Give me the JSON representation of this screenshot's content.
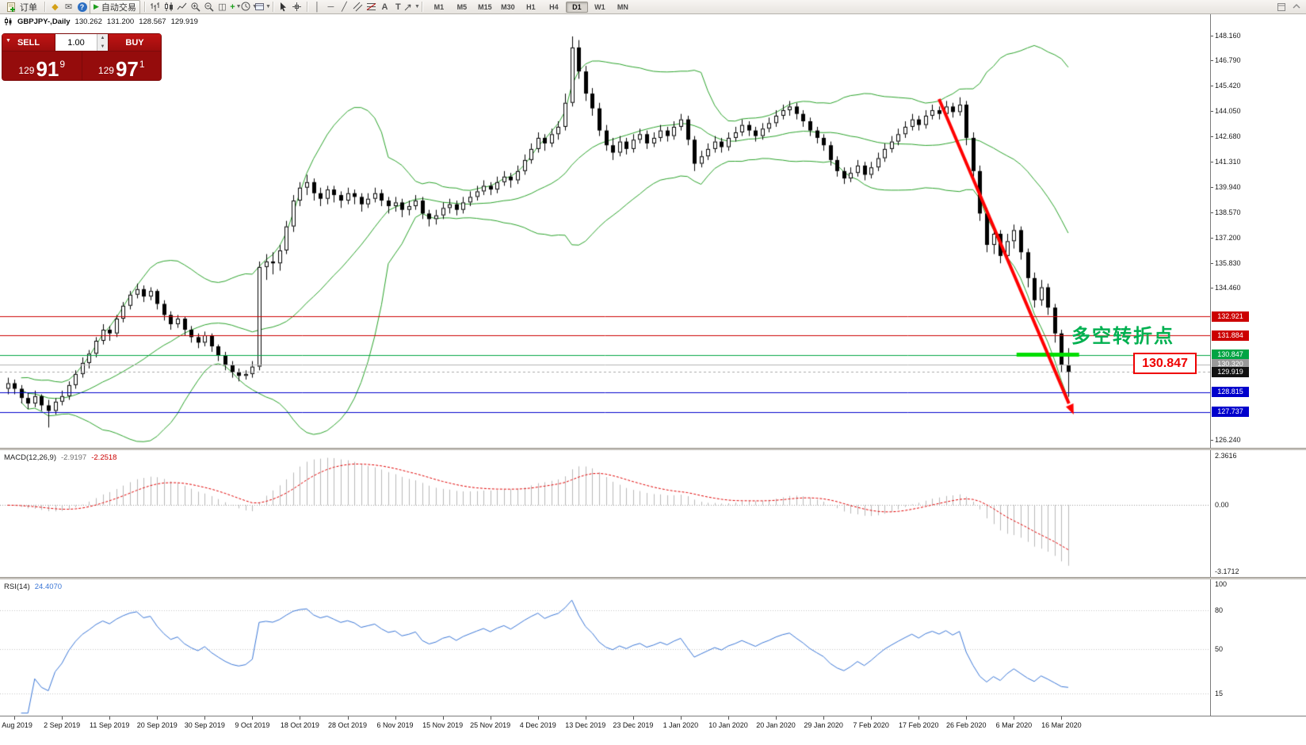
{
  "toolbar": {
    "order_label": "订单",
    "autotrade_label": "自动交易",
    "timeframes": [
      "M1",
      "M5",
      "M15",
      "M30",
      "H1",
      "H4",
      "D1",
      "W1",
      "MN"
    ],
    "active_timeframe": "D1"
  },
  "quote": {
    "symbol": "GBPJPY-,Daily",
    "open": "130.262",
    "high": "131.200",
    "low": "128.567",
    "close": "129.919"
  },
  "trade_panel": {
    "sell_label": "SELL",
    "buy_label": "BUY",
    "volume": "1.00",
    "bid_prefix": "129",
    "bid_big": "91",
    "bid_sup": "9",
    "ask_prefix": "129",
    "ask_big": "97",
    "ask_sup": "1"
  },
  "annotations": {
    "turning_point": "多空转折点",
    "level_box": "130.847"
  },
  "price_axis": {
    "ticks": [
      148.16,
      146.79,
      145.42,
      144.05,
      142.68,
      141.31,
      139.94,
      138.57,
      137.2,
      135.83,
      134.46,
      126.24
    ]
  },
  "macd": {
    "name": "MACD(12,26,9)",
    "main": "-2.9197",
    "signal": "-2.2518",
    "ticks": [
      {
        "v": 2.3616,
        "t": "2.3616"
      },
      {
        "v": 0,
        "t": "0.00"
      },
      {
        "v": -3.1712,
        "t": "-3.1712"
      }
    ]
  },
  "rsi": {
    "name": "RSI(14)",
    "value": "24.4070",
    "ticks": [
      {
        "v": 100,
        "t": "100"
      },
      {
        "v": 80,
        "t": "80"
      },
      {
        "v": 50,
        "t": "50"
      },
      {
        "v": 15,
        "t": "15"
      }
    ],
    "levels": [
      80,
      50,
      15
    ]
  },
  "date_axis": [
    {
      "i": 1,
      "t": "1 Aug 2019"
    },
    {
      "i": 8,
      "t": "2 Sep 2019"
    },
    {
      "i": 15,
      "t": "11 Sep 2019"
    },
    {
      "i": 22,
      "t": "20 Sep 2019"
    },
    {
      "i": 29,
      "t": "30 Sep 2019"
    },
    {
      "i": 36,
      "t": "9 Oct 2019"
    },
    {
      "i": 43,
      "t": "18 Oct 2019"
    },
    {
      "i": 50,
      "t": "28 Oct 2019"
    },
    {
      "i": 57,
      "t": "6 Nov 2019"
    },
    {
      "i": 64,
      "t": "15 Nov 2019"
    },
    {
      "i": 71,
      "t": "25 Nov 2019"
    },
    {
      "i": 78,
      "t": "4 Dec 2019"
    },
    {
      "i": 85,
      "t": "13 Dec 2019"
    },
    {
      "i": 92,
      "t": "23 Dec 2019"
    },
    {
      "i": 99,
      "t": "1 Jan 2020"
    },
    {
      "i": 106,
      "t": "10 Jan 2020"
    },
    {
      "i": 113,
      "t": "20 Jan 2020"
    },
    {
      "i": 120,
      "t": "29 Jan 2020"
    },
    {
      "i": 127,
      "t": "7 Feb 2020"
    },
    {
      "i": 134,
      "t": "17 Feb 2020"
    },
    {
      "i": 141,
      "t": "26 Feb 2020"
    },
    {
      "i": 148,
      "t": "6 Mar 2020"
    },
    {
      "i": 155,
      "t": "16 Mar 2020"
    }
  ],
  "colors": {
    "bollinger": "#2aa22a",
    "candle_up": "#ffffff",
    "candle_down": "#000000",
    "candle_border": "#000000",
    "macd_hist": "#b8b8b8",
    "macd_signal": "#e00000",
    "rsi_line": "#3a76d6",
    "line_red": "#cc0000",
    "line_green": "#00a443",
    "line_blue": "#0000cc",
    "arrow": "#ff0000",
    "support_segment": "#00dd00",
    "annotation_green": "#00b050",
    "level_box_red": "#ee0000"
  },
  "chart_data": {
    "type": "candlestick",
    "symbol": "GBPJPY",
    "timeframe": "Daily",
    "bollinger_period": 20,
    "bollinger_deviation": 2,
    "price_range": {
      "max": 149.3,
      "min": 125.8
    },
    "lines": [
      {
        "price": 132.921,
        "label": "132.921",
        "color": "#cc0000"
      },
      {
        "price": 131.884,
        "label": "131.884",
        "color": "#cc0000"
      },
      {
        "price": 130.847,
        "label": "130.847",
        "color": "#00a443"
      },
      {
        "price": 130.32,
        "label": "130.320",
        "color": "#b4b4b4",
        "label_bg": "#9a9a9a"
      },
      {
        "price": 129.919,
        "label": "129.919",
        "color": "#aaaaaa",
        "label_bg": "#111111",
        "dashed": true
      },
      {
        "price": 128.815,
        "label": "128.815",
        "color": "#0000cc"
      },
      {
        "price": 127.737,
        "label": "127.737",
        "color": "#0000cc"
      }
    ],
    "support_segment": {
      "price": 130.847,
      "from_index": 148.4,
      "to_index": 157.6
    },
    "trend_arrow": {
      "from": {
        "index": 137,
        "price": 144.7
      },
      "to": {
        "index": 156.8,
        "price": 127.6
      }
    },
    "candles": [
      [
        129.0,
        129.6,
        128.7,
        129.3
      ],
      [
        129.3,
        129.5,
        128.7,
        129.0
      ],
      [
        129.0,
        129.2,
        128.2,
        128.5
      ],
      [
        128.5,
        128.8,
        127.9,
        128.2
      ],
      [
        128.2,
        128.9,
        128.0,
        128.6
      ],
      [
        128.6,
        128.7,
        127.8,
        128.1
      ],
      [
        128.1,
        128.4,
        126.9,
        127.8
      ],
      [
        127.8,
        128.5,
        127.6,
        128.3
      ],
      [
        128.3,
        128.9,
        128.1,
        128.6
      ],
      [
        128.6,
        129.4,
        128.4,
        129.2
      ],
      [
        129.2,
        130.0,
        129.0,
        129.8
      ],
      [
        129.8,
        130.7,
        129.6,
        130.4
      ],
      [
        130.4,
        131.1,
        130.1,
        130.9
      ],
      [
        130.9,
        131.8,
        130.7,
        131.6
      ],
      [
        131.6,
        132.5,
        131.4,
        132.2
      ],
      [
        132.2,
        132.4,
        131.6,
        132.0
      ],
      [
        132.0,
        133.0,
        131.8,
        132.8
      ],
      [
        132.8,
        133.7,
        132.6,
        133.5
      ],
      [
        133.5,
        134.3,
        133.3,
        134.1
      ],
      [
        134.1,
        134.7,
        133.9,
        134.4
      ],
      [
        134.4,
        134.6,
        133.7,
        134.0
      ],
      [
        134.0,
        134.5,
        133.8,
        134.3
      ],
      [
        134.3,
        134.4,
        133.3,
        133.6
      ],
      [
        133.6,
        133.8,
        132.7,
        133.0
      ],
      [
        133.0,
        133.2,
        132.2,
        132.5
      ],
      [
        132.5,
        133.0,
        132.3,
        132.8
      ],
      [
        132.8,
        132.9,
        131.9,
        132.2
      ],
      [
        132.2,
        132.4,
        131.5,
        131.8
      ],
      [
        131.8,
        132.0,
        131.2,
        131.5
      ],
      [
        131.5,
        132.1,
        131.3,
        131.9
      ],
      [
        131.9,
        132.0,
        131.0,
        131.3
      ],
      [
        131.3,
        131.4,
        130.5,
        130.8
      ],
      [
        130.8,
        131.0,
        130.0,
        130.3
      ],
      [
        130.3,
        130.5,
        129.6,
        129.9
      ],
      [
        129.9,
        130.1,
        129.4,
        129.7
      ],
      [
        129.7,
        130.0,
        129.5,
        129.8
      ],
      [
        129.8,
        130.5,
        129.6,
        130.2
      ],
      [
        130.2,
        135.9,
        130.0,
        135.6
      ],
      [
        135.6,
        136.3,
        134.9,
        135.9
      ],
      [
        135.9,
        136.4,
        135.2,
        135.8
      ],
      [
        135.8,
        136.8,
        135.4,
        136.5
      ],
      [
        136.5,
        138.1,
        136.3,
        137.8
      ],
      [
        137.8,
        139.5,
        137.5,
        139.2
      ],
      [
        139.2,
        140.2,
        138.9,
        139.9
      ],
      [
        139.9,
        140.6,
        139.5,
        140.2
      ],
      [
        140.2,
        140.4,
        139.2,
        139.6
      ],
      [
        139.6,
        139.9,
        138.9,
        139.3
      ],
      [
        139.3,
        140.0,
        139.0,
        139.8
      ],
      [
        139.8,
        140.0,
        139.1,
        139.5
      ],
      [
        139.5,
        139.7,
        138.8,
        139.2
      ],
      [
        139.2,
        139.9,
        139.0,
        139.6
      ],
      [
        139.6,
        139.8,
        139.0,
        139.4
      ],
      [
        139.4,
        139.6,
        138.6,
        139.0
      ],
      [
        139.0,
        139.6,
        138.8,
        139.3
      ],
      [
        139.3,
        139.9,
        139.1,
        139.6
      ],
      [
        139.6,
        139.8,
        138.9,
        139.2
      ],
      [
        139.2,
        139.4,
        138.5,
        138.9
      ],
      [
        138.9,
        139.4,
        138.6,
        139.1
      ],
      [
        139.1,
        139.3,
        138.3,
        138.7
      ],
      [
        138.7,
        139.2,
        138.4,
        138.9
      ],
      [
        138.9,
        139.5,
        138.7,
        139.2
      ],
      [
        139.2,
        139.4,
        138.2,
        138.5
      ],
      [
        138.5,
        138.7,
        137.8,
        138.2
      ],
      [
        138.2,
        138.7,
        137.9,
        138.4
      ],
      [
        138.4,
        139.1,
        138.2,
        138.8
      ],
      [
        138.8,
        139.3,
        138.5,
        139.0
      ],
      [
        139.0,
        139.2,
        138.4,
        138.7
      ],
      [
        138.7,
        139.4,
        138.5,
        139.1
      ],
      [
        139.1,
        139.7,
        138.9,
        139.4
      ],
      [
        139.4,
        140.0,
        139.2,
        139.7
      ],
      [
        139.7,
        140.3,
        139.5,
        140.0
      ],
      [
        140.0,
        140.2,
        139.5,
        139.8
      ],
      [
        139.8,
        140.5,
        139.6,
        140.2
      ],
      [
        140.2,
        140.8,
        140.0,
        140.5
      ],
      [
        140.5,
        140.7,
        139.9,
        140.3
      ],
      [
        140.3,
        141.1,
        140.1,
        140.8
      ],
      [
        140.8,
        141.7,
        140.6,
        141.4
      ],
      [
        141.4,
        142.3,
        141.2,
        142.0
      ],
      [
        142.0,
        142.9,
        141.8,
        142.6
      ],
      [
        142.6,
        142.8,
        141.9,
        142.3
      ],
      [
        142.3,
        143.1,
        142.1,
        142.8
      ],
      [
        142.8,
        143.5,
        142.5,
        143.2
      ],
      [
        143.2,
        145.0,
        143.0,
        144.5
      ],
      [
        144.5,
        148.1,
        144.3,
        147.5
      ],
      [
        147.5,
        147.9,
        145.8,
        146.2
      ],
      [
        146.2,
        146.5,
        144.6,
        145.0
      ],
      [
        145.0,
        145.3,
        143.8,
        144.2
      ],
      [
        144.2,
        144.5,
        142.7,
        143.0
      ],
      [
        143.0,
        143.3,
        141.9,
        142.2
      ],
      [
        142.2,
        142.6,
        141.4,
        141.8
      ],
      [
        141.8,
        142.7,
        141.6,
        142.4
      ],
      [
        142.4,
        142.6,
        141.7,
        142.0
      ],
      [
        142.0,
        142.8,
        141.8,
        142.5
      ],
      [
        142.5,
        143.1,
        142.3,
        142.8
      ],
      [
        142.8,
        143.0,
        142.0,
        142.3
      ],
      [
        142.3,
        142.9,
        142.1,
        142.6
      ],
      [
        142.6,
        143.3,
        142.4,
        143.0
      ],
      [
        143.0,
        143.2,
        142.4,
        142.7
      ],
      [
        142.7,
        143.5,
        142.5,
        143.2
      ],
      [
        143.2,
        143.9,
        143.0,
        143.6
      ],
      [
        143.6,
        143.8,
        142.2,
        142.5
      ],
      [
        142.5,
        142.7,
        140.8,
        141.2
      ],
      [
        141.2,
        141.9,
        141.0,
        141.6
      ],
      [
        141.6,
        142.3,
        141.4,
        142.0
      ],
      [
        142.0,
        142.7,
        141.8,
        142.4
      ],
      [
        142.4,
        142.6,
        141.8,
        142.1
      ],
      [
        142.1,
        142.9,
        141.9,
        142.6
      ],
      [
        142.6,
        143.2,
        142.4,
        142.9
      ],
      [
        142.9,
        143.6,
        142.7,
        143.3
      ],
      [
        143.3,
        143.5,
        142.7,
        143.0
      ],
      [
        143.0,
        143.2,
        142.4,
        142.7
      ],
      [
        142.7,
        143.4,
        142.5,
        143.1
      ],
      [
        143.1,
        143.7,
        142.9,
        143.4
      ],
      [
        143.4,
        144.1,
        143.2,
        143.8
      ],
      [
        143.8,
        144.4,
        143.6,
        144.1
      ],
      [
        144.1,
        144.6,
        143.8,
        144.3
      ],
      [
        144.3,
        144.5,
        143.6,
        143.9
      ],
      [
        143.9,
        144.1,
        143.2,
        143.5
      ],
      [
        143.5,
        143.7,
        142.7,
        143.0
      ],
      [
        143.0,
        143.2,
        142.3,
        142.6
      ],
      [
        142.6,
        142.8,
        141.9,
        142.2
      ],
      [
        142.2,
        142.4,
        141.1,
        141.4
      ],
      [
        141.4,
        141.6,
        140.5,
        140.8
      ],
      [
        140.8,
        141.0,
        140.1,
        140.4
      ],
      [
        140.4,
        141.0,
        140.2,
        140.7
      ],
      [
        140.7,
        141.4,
        140.5,
        141.1
      ],
      [
        141.1,
        141.3,
        140.3,
        140.6
      ],
      [
        140.6,
        141.3,
        140.4,
        141.0
      ],
      [
        141.0,
        141.8,
        140.8,
        141.5
      ],
      [
        141.5,
        142.3,
        141.3,
        142.0
      ],
      [
        142.0,
        142.7,
        141.8,
        142.4
      ],
      [
        142.4,
        143.1,
        142.2,
        142.8
      ],
      [
        142.8,
        143.5,
        142.6,
        143.2
      ],
      [
        143.2,
        143.9,
        143.0,
        143.6
      ],
      [
        143.6,
        143.8,
        143.0,
        143.3
      ],
      [
        143.3,
        144.1,
        143.1,
        143.8
      ],
      [
        143.8,
        144.4,
        143.6,
        144.1
      ],
      [
        144.1,
        144.3,
        143.6,
        143.9
      ],
      [
        143.9,
        144.6,
        143.7,
        144.3
      ],
      [
        144.3,
        144.5,
        143.7,
        144.0
      ],
      [
        144.0,
        144.8,
        143.8,
        144.4
      ],
      [
        144.4,
        144.6,
        142.2,
        142.6
      ],
      [
        142.6,
        142.9,
        140.4,
        140.8
      ],
      [
        140.8,
        141.1,
        138.1,
        138.5
      ],
      [
        138.5,
        138.8,
        136.4,
        136.8
      ],
      [
        136.8,
        137.8,
        136.3,
        137.4
      ],
      [
        137.4,
        137.6,
        135.8,
        136.2
      ],
      [
        136.2,
        137.4,
        136.0,
        137.0
      ],
      [
        137.0,
        137.9,
        136.6,
        137.6
      ],
      [
        137.6,
        137.8,
        136.0,
        136.4
      ],
      [
        136.4,
        136.6,
        134.5,
        135.0
      ],
      [
        135.0,
        135.3,
        133.4,
        133.8
      ],
      [
        133.8,
        134.9,
        133.5,
        134.5
      ],
      [
        134.5,
        134.7,
        133.0,
        133.4
      ],
      [
        133.4,
        133.6,
        131.5,
        132.0
      ],
      [
        132.0,
        132.2,
        129.9,
        130.3
      ],
      [
        130.262,
        131.2,
        128.567,
        129.919
      ]
    ]
  }
}
